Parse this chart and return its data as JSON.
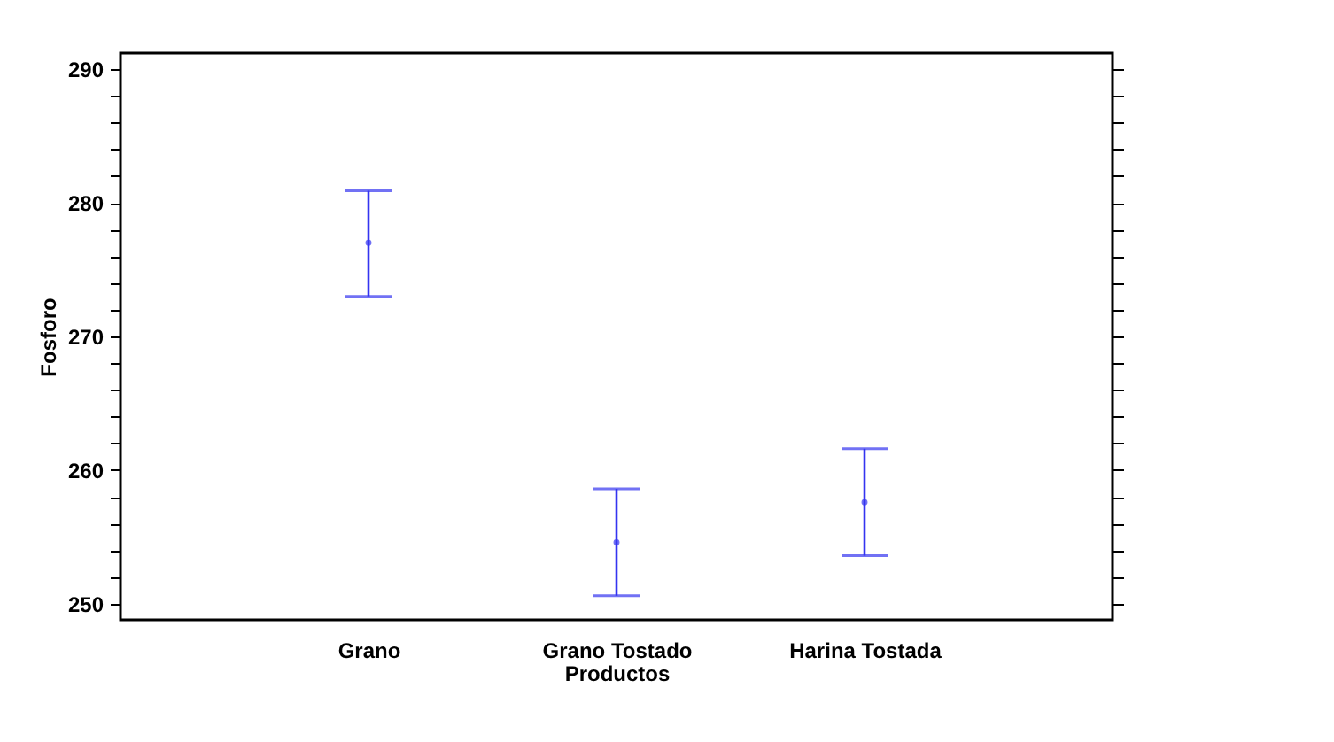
{
  "chart_data": {
    "type": "scatter",
    "xlabel": "Productos",
    "ylabel": "Fosforo",
    "categories": [
      "Grano",
      "Grano  Tostado",
      "Harina Tostada"
    ],
    "series": [
      {
        "color": "#3434f0",
        "values": [
          277.0,
          254.6,
          257.6
        ],
        "errors": [
          [
            273.0,
            280.9
          ],
          [
            250.6,
            258.6
          ],
          [
            253.6,
            261.6
          ]
        ]
      }
    ],
    "ylim": [
      248.8,
      291.2
    ],
    "yticks": [
      250,
      {
        "value": 252,
        "label": null
      },
      {
        "value": 254,
        "label": null
      },
      {
        "value": 256,
        "label": null
      },
      {
        "value": 258,
        "label": null
      },
      260,
      {
        "value": 262,
        "label": null
      },
      {
        "value": 264,
        "label": null
      },
      {
        "value": 266,
        "label": null
      },
      {
        "value": 268,
        "label": null
      },
      270,
      {
        "value": 272,
        "label": null
      },
      {
        "value": 274,
        "label": null
      },
      {
        "value": 276,
        "label": null
      },
      {
        "value": 278,
        "label": null
      },
      280,
      {
        "value": 282,
        "label": null
      },
      {
        "value": 284,
        "label": null
      },
      {
        "value": 286,
        "label": null
      },
      {
        "value": 288,
        "label": null
      },
      290
    ],
    "marker": "circle",
    "grid": false
  }
}
